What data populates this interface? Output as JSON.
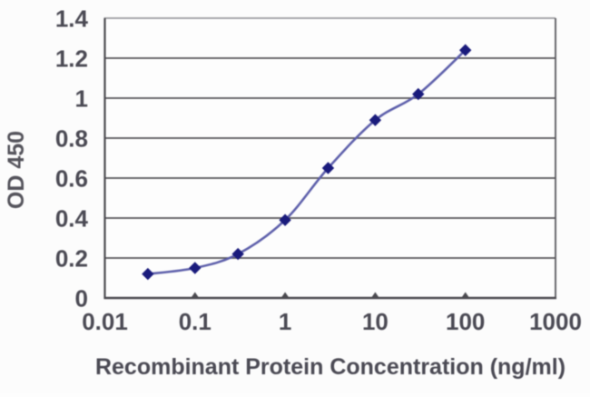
{
  "figure": {
    "background": "#fcfcfc",
    "description_title": "ELISA binding curve"
  },
  "chart_data": {
    "type": "line",
    "title": "",
    "xlabel": "Recombinant Protein Concentration (ng/ml)",
    "ylabel": "OD 450",
    "x_scale": "log",
    "x": [
      0.03,
      0.1,
      0.3,
      1,
      3,
      10,
      30,
      100
    ],
    "y": [
      0.12,
      0.15,
      0.22,
      0.39,
      0.65,
      0.89,
      1.02,
      1.24
    ],
    "x_ticks": [
      "0.01",
      "0.1",
      "1",
      "10",
      "100",
      "1000"
    ],
    "x_tick_values": [
      0.01,
      0.1,
      1,
      10,
      100,
      1000
    ],
    "y_ticks": [
      "0",
      "0.2",
      "0.4",
      "0.6",
      "0.8",
      "1",
      "1.2",
      "1.4"
    ],
    "y_tick_values": [
      0,
      0.2,
      0.4,
      0.6,
      0.8,
      1,
      1.2,
      1.4
    ],
    "xlim": [
      0.01,
      1000
    ],
    "ylim": [
      0,
      1.4
    ],
    "grid": "horizontal",
    "legend": "none",
    "marker": "diamond",
    "smoothed_line": true,
    "colors": {
      "line": "#5e60ab",
      "marker": "#1a1b7c",
      "gridline": "#57565b",
      "axis": "#4c4b50",
      "top_border": "#9c9ca0",
      "tick_label": "#4b4a54",
      "axis_title": "#55545c",
      "plot_background": "#fdfdfd"
    }
  }
}
